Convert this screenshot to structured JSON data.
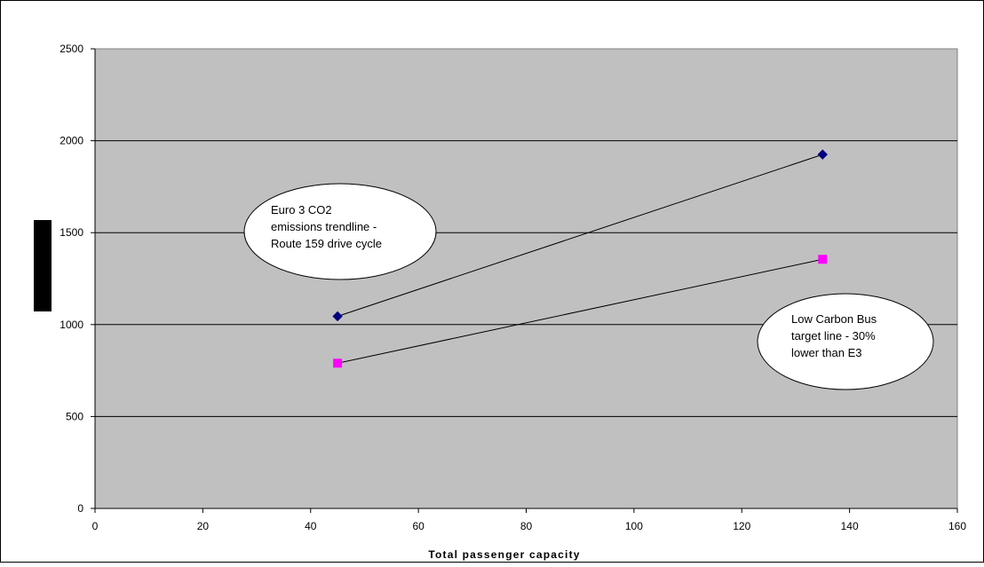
{
  "chart_data": {
    "type": "line",
    "title": "",
    "xlabel": "Total passenger capacity",
    "ylabel": "",
    "xlim": [
      0,
      160
    ],
    "ylim": [
      0,
      2500
    ],
    "x_ticks": [
      "0",
      "20",
      "40",
      "60",
      "80",
      "100",
      "120",
      "140",
      "160"
    ],
    "y_ticks": [
      "0",
      "500",
      "1000",
      "1500",
      "2000",
      "2500"
    ],
    "grid": "horizontal",
    "plot_background": "#c0c0c0",
    "series": [
      {
        "color": "#000080",
        "marker": "diamond",
        "points": [
          {
            "x": 45,
            "y": 1045
          },
          {
            "x": 135,
            "y": 1925
          }
        ]
      },
      {
        "color": "#ff00ff",
        "marker": "square",
        "points": [
          {
            "x": 45,
            "y": 790
          },
          {
            "x": 135,
            "y": 1355
          }
        ]
      }
    ],
    "annotations": [
      {
        "lines": [
          "Euro 3 CO2",
          "emissions trendline -",
          "Route 159 drive cycle"
        ]
      },
      {
        "lines": [
          "Low Carbon Bus",
          "target line - 30%",
          "lower than E3"
        ]
      }
    ]
  }
}
